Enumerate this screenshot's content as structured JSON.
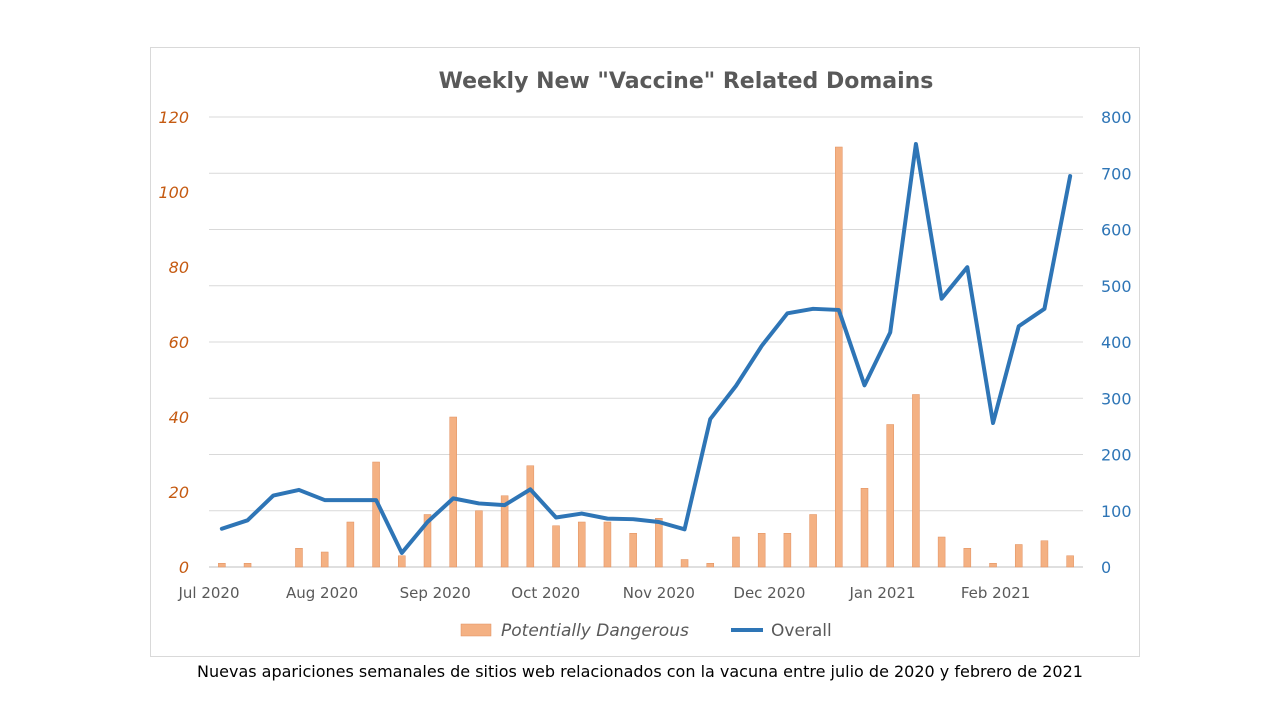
{
  "chart_data": {
    "type": "bar+line",
    "title": "Weekly New \"Vaccine\" Related Domains",
    "x_tick_labels": [
      "Jul 2020",
      "Aug 2020",
      "Sep 2020",
      "Oct 2020",
      "Nov 2020",
      "Dec 2020",
      "Jan 2021",
      "Feb 2021"
    ],
    "y_left": {
      "min": 0,
      "max": 120,
      "ticks": [
        "0",
        "20",
        "40",
        "60",
        "80",
        "100",
        "120"
      ],
      "color": "#c55a11"
    },
    "y_right": {
      "min": 0,
      "max": 800,
      "ticks": [
        "0",
        "100",
        "200",
        "300",
        "400",
        "500",
        "600",
        "700",
        "800"
      ],
      "color": "#2e75b6"
    },
    "weeks": 34,
    "series": [
      {
        "name": "Potentially Dangerous",
        "kind": "bar",
        "axis": "left",
        "color": "#f4b183",
        "values": [
          1,
          1,
          0,
          5,
          4,
          12,
          28,
          3,
          14,
          40,
          15,
          19,
          27,
          11,
          12,
          12,
          9,
          13,
          2,
          1,
          8,
          9,
          9,
          14,
          112,
          21,
          38,
          46,
          8,
          5,
          1,
          6,
          7,
          3
        ]
      },
      {
        "name": "Overall",
        "kind": "line",
        "axis": "right",
        "color": "#2e75b6",
        "values": [
          68,
          83,
          127,
          137,
          119,
          119,
          119,
          25,
          80,
          122,
          113,
          110,
          138,
          88,
          95,
          86,
          85,
          80,
          67,
          263,
          322,
          393,
          451,
          459,
          457,
          323,
          417,
          752,
          477,
          533,
          256,
          428,
          459,
          695
        ]
      }
    ],
    "legend": {
      "position": "bottom",
      "entries": [
        "Potentially Dangerous",
        "Overall"
      ]
    }
  },
  "caption": "Nuevas apariciones semanales de sitios web relacionados con la vacuna entre julio de 2020 y febrero de 2021"
}
